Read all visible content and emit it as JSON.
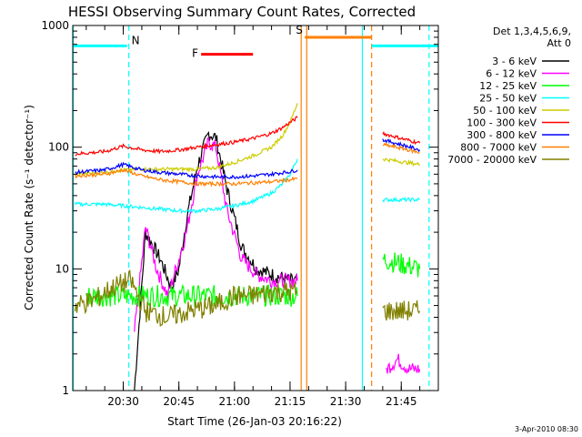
{
  "chart_data": {
    "type": "line",
    "title": "HESSI Observing Summary Count Rates, Corrected",
    "xlabel": "Start Time (26-Jan-03 20:16:22)",
    "ylabel": "Corrected Count Rate (s⁻¹ detector⁻¹)",
    "y_scale": "log",
    "ylim": [
      1,
      1000
    ],
    "y_ticks": [
      1,
      10,
      100,
      1000
    ],
    "y_tick_labels": [
      "1",
      "10",
      "100",
      "1000"
    ],
    "xlim": [
      "20:16:22",
      "21:55:00"
    ],
    "x_ticks": [
      "20:30",
      "20:45",
      "21:00",
      "21:15",
      "21:30",
      "21:45"
    ],
    "detector_label": "Det 1,3,4,5,6,9,",
    "attenuator_label": "Att 0",
    "footer_date": "3-Apr-2010 08:30",
    "legend_placement": "right",
    "series": [
      {
        "name": "3 - 6 keV",
        "color": "#000000",
        "x": [
          "20:33",
          "20:36",
          "20:40",
          "20:43",
          "20:45",
          "20:47",
          "20:50",
          "20:53",
          "20:55",
          "20:58",
          "21:02",
          "21:06",
          "21:10",
          "21:15",
          "21:17"
        ],
        "y": [
          1,
          20,
          12,
          7,
          10,
          25,
          70,
          130,
          120,
          45,
          15,
          10,
          9,
          8,
          8
        ]
      },
      {
        "name": "6 - 12 keV",
        "color": "#ff00ff",
        "x": [
          "20:33",
          "20:36",
          "20:39",
          "20:42",
          "20:45",
          "20:47",
          "20:50",
          "20:53",
          "20:55",
          "20:58",
          "21:02",
          "21:06",
          "21:10",
          "21:15",
          "21:17",
          "21:41",
          "21:44",
          "21:47",
          "21:50"
        ],
        "y": [
          3,
          22,
          10,
          6,
          12,
          20,
          60,
          110,
          100,
          30,
          12,
          9,
          8,
          8,
          8,
          1.5,
          1.8,
          1.5,
          1.5
        ]
      },
      {
        "name": "12 - 25 keV",
        "color": "#00ff00",
        "x": [
          "20:20",
          "20:25",
          "20:30",
          "20:35",
          "20:40",
          "20:45",
          "20:50",
          "20:55",
          "21:00",
          "21:05",
          "21:10",
          "21:15",
          "21:17",
          "21:40",
          "21:45",
          "21:50"
        ],
        "y": [
          6,
          6,
          6,
          6,
          6,
          6,
          6,
          6,
          6,
          6,
          6,
          6,
          6,
          12,
          11,
          10
        ]
      },
      {
        "name": "25 - 50 keV",
        "color": "#00ffff",
        "x": [
          "20:17",
          "20:25",
          "20:30",
          "20:35",
          "20:40",
          "20:45",
          "20:50",
          "20:55",
          "21:00",
          "21:05",
          "21:10",
          "21:13",
          "21:15",
          "21:17",
          "21:40",
          "21:45",
          "21:50"
        ],
        "y": [
          34,
          34,
          33,
          32,
          31,
          30,
          30,
          31,
          33,
          36,
          42,
          50,
          60,
          80,
          37,
          37,
          37
        ]
      },
      {
        "name": "50 - 100 keV",
        "color": "#cccc00",
        "x": [
          "20:17",
          "20:25",
          "20:30",
          "20:35",
          "20:40",
          "20:45",
          "20:50",
          "20:55",
          "21:00",
          "21:05",
          "21:10",
          "21:13",
          "21:15",
          "21:17",
          "21:40",
          "21:45",
          "21:50"
        ],
        "y": [
          60,
          62,
          65,
          66,
          66,
          66,
          66,
          68,
          75,
          85,
          100,
          125,
          160,
          230,
          80,
          76,
          72
        ]
      },
      {
        "name": "100 - 300 keV",
        "color": "#ff0000",
        "x": [
          "20:17",
          "20:25",
          "20:30",
          "20:35",
          "20:40",
          "20:45",
          "20:50",
          "20:55",
          "21:00",
          "21:05",
          "21:10",
          "21:13",
          "21:15",
          "21:17",
          "21:40",
          "21:45",
          "21:50"
        ],
        "y": [
          88,
          92,
          102,
          95,
          92,
          95,
          100,
          105,
          110,
          118,
          130,
          145,
          160,
          175,
          130,
          118,
          108
        ]
      },
      {
        "name": "300 - 800 keV",
        "color": "#0000ff",
        "x": [
          "20:17",
          "20:25",
          "20:30",
          "20:35",
          "20:40",
          "20:45",
          "20:50",
          "20:55",
          "21:00",
          "21:05",
          "21:10",
          "21:15",
          "21:17",
          "21:40",
          "21:45",
          "21:50"
        ],
        "y": [
          62,
          65,
          72,
          65,
          62,
          60,
          58,
          57,
          57,
          58,
          60,
          63,
          65,
          115,
          105,
          95
        ]
      },
      {
        "name": "800 - 7000 keV",
        "color": "#ff8000",
        "x": [
          "20:17",
          "20:25",
          "20:30",
          "20:35",
          "20:40",
          "20:45",
          "20:50",
          "20:55",
          "21:00",
          "21:05",
          "21:10",
          "21:15",
          "21:17",
          "21:40",
          "21:45",
          "21:50"
        ],
        "y": [
          58,
          60,
          65,
          58,
          54,
          52,
          50,
          50,
          50,
          51,
          52,
          54,
          55,
          105,
          98,
          90
        ]
      },
      {
        "name": "7000 - 20000 keV",
        "color": "#808000",
        "x": [
          "20:17",
          "20:22",
          "20:27",
          "20:32",
          "20:36",
          "20:42",
          "20:48",
          "20:55",
          "21:00",
          "21:05",
          "21:10",
          "21:15",
          "21:17",
          "21:40",
          "21:45",
          "21:50"
        ],
        "y": [
          5,
          5.5,
          7,
          8,
          4.5,
          4,
          4.5,
          5,
          6,
          6,
          6.5,
          6.5,
          6.5,
          4.5,
          4.5,
          4.5
        ]
      }
    ],
    "annotations": [
      {
        "label": "N",
        "color": "#00ffff",
        "level": 680,
        "x_start": "20:16:22",
        "x_end": "20:31:00",
        "type": "segment"
      },
      {
        "label": "",
        "color": "#00ffff",
        "level": 680,
        "x_start": "21:37:00",
        "x_end": "21:55:00",
        "type": "segment"
      },
      {
        "label": "F",
        "color": "#ff0000",
        "level": 580,
        "x_start": "20:51:00",
        "x_end": "21:05:00",
        "type": "segment"
      },
      {
        "label": "S",
        "color": "#ff8000",
        "level": 800,
        "x_start": "21:19:00",
        "x_end": "21:37:00",
        "type": "segment"
      }
    ],
    "vertical_markers": [
      {
        "x": "20:31:30",
        "color": "#00ffff",
        "style": "dashed"
      },
      {
        "x": "21:18:00",
        "color": "#ff8000",
        "style": "solid"
      },
      {
        "x": "21:19:30",
        "color": "#ff8000",
        "style": "solid"
      },
      {
        "x": "21:34:30",
        "color": "#00ffff",
        "style": "solid"
      },
      {
        "x": "21:37:00",
        "color": "#ff8000",
        "style": "dashed"
      },
      {
        "x": "21:52:30",
        "color": "#00ffff",
        "style": "dashed"
      },
      {
        "x": "20:16:30",
        "color": "#00ffff",
        "style": "solid"
      }
    ]
  }
}
